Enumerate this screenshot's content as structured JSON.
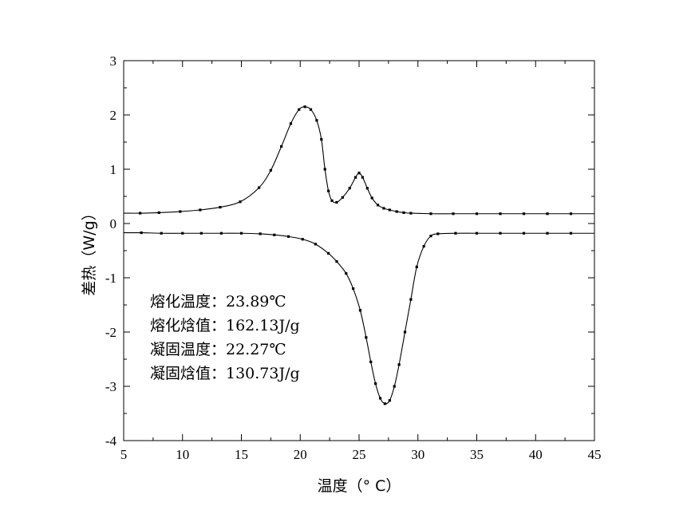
{
  "chart_data": {
    "type": "line",
    "xlabel": "温度（° C）",
    "ylabel": "差热（W/g）",
    "xlim": [
      5,
      45
    ],
    "ylim": [
      -4,
      3
    ],
    "xticks": [
      "5",
      "10",
      "15",
      "20",
      "25",
      "30",
      "35",
      "40",
      "45"
    ],
    "yticks": [
      "3",
      "2",
      "1",
      "0",
      "-1",
      "-2",
      "-3",
      "-4"
    ],
    "grid": false,
    "legend": "none",
    "annotations": [
      "熔化温度：23.89℃",
      "熔化焓值：162.13J/g",
      "凝固温度：22.27℃",
      "凝固焓值：130.73J/g"
    ],
    "series": [
      {
        "color": "#000000",
        "x": [
          5.0,
          6.4,
          8.0,
          9.8,
          11.5,
          13.2,
          14.9,
          16.5,
          17.5,
          18.4,
          19.2,
          19.9,
          20.4,
          20.9,
          21.4,
          21.8,
          22.1,
          22.4,
          22.7,
          23.1,
          23.6,
          24.2,
          24.7,
          25.0,
          25.3,
          25.7,
          26.1,
          26.6,
          27.1,
          27.6,
          28.2,
          28.8,
          29.4,
          31.1,
          33.0,
          35.0,
          37.0,
          39.0,
          41.0,
          43.0,
          45.0
        ],
        "y": [
          0.19,
          0.19,
          0.2,
          0.22,
          0.25,
          0.3,
          0.4,
          0.66,
          0.98,
          1.42,
          1.84,
          2.1,
          2.15,
          2.1,
          1.9,
          1.55,
          1.0,
          0.6,
          0.42,
          0.39,
          0.48,
          0.65,
          0.85,
          0.93,
          0.85,
          0.65,
          0.47,
          0.34,
          0.28,
          0.25,
          0.22,
          0.2,
          0.19,
          0.18,
          0.18,
          0.18,
          0.18,
          0.18,
          0.18,
          0.18,
          0.18
        ]
      },
      {
        "color": "#000000",
        "x": [
          5.0,
          6.5,
          8.2,
          10.0,
          11.6,
          13.3,
          15.0,
          16.6,
          17.8,
          19.0,
          20.2,
          21.3,
          22.4,
          23.1,
          23.9,
          24.5,
          25.1,
          25.6,
          26.0,
          26.4,
          26.8,
          27.2,
          27.6,
          28.0,
          28.4,
          28.9,
          29.4,
          29.9,
          30.5,
          31.1,
          31.7,
          33.2,
          35.0,
          37.0,
          39.0,
          41.0,
          43.0,
          45.0
        ],
        "y": [
          -0.17,
          -0.17,
          -0.18,
          -0.18,
          -0.18,
          -0.18,
          -0.18,
          -0.19,
          -0.21,
          -0.24,
          -0.29,
          -0.38,
          -0.55,
          -0.7,
          -0.92,
          -1.2,
          -1.6,
          -2.1,
          -2.55,
          -2.95,
          -3.22,
          -3.32,
          -3.26,
          -3.0,
          -2.6,
          -2.0,
          -1.4,
          -0.8,
          -0.42,
          -0.23,
          -0.19,
          -0.18,
          -0.18,
          -0.18,
          -0.18,
          -0.18,
          -0.18,
          -0.18
        ]
      }
    ]
  }
}
